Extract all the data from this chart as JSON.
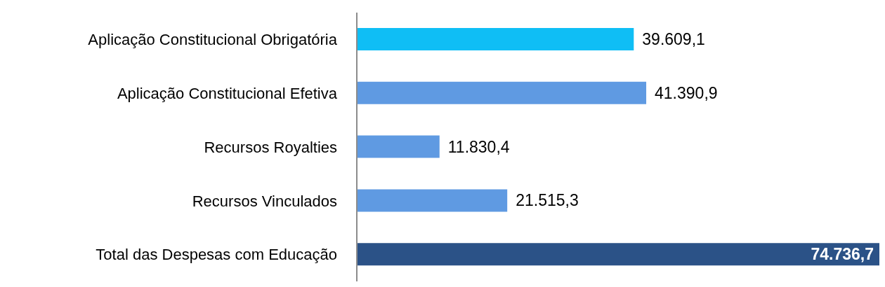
{
  "chart_data": {
    "type": "bar",
    "orientation": "horizontal",
    "tick_labels": "y",
    "categories": [
      "Aplicação Constitucional Obrigatória",
      "Aplicação Constitucional Efetiva",
      "Recursos Royalties",
      "Recursos Vinculados",
      "Total das Despesas com Educação"
    ],
    "values": [
      39609.1,
      41390.9,
      11830.4,
      21515.3,
      74736.7
    ],
    "colors": [
      "#0fbef5",
      "#5f9ae2",
      "#5f9ae2",
      "#5f9ae2",
      "#2b5287"
    ],
    "value_labels": [
      "39.609,1",
      "41.390,9",
      "11.830,4",
      "21.515,3",
      "74.736,7"
    ]
  }
}
